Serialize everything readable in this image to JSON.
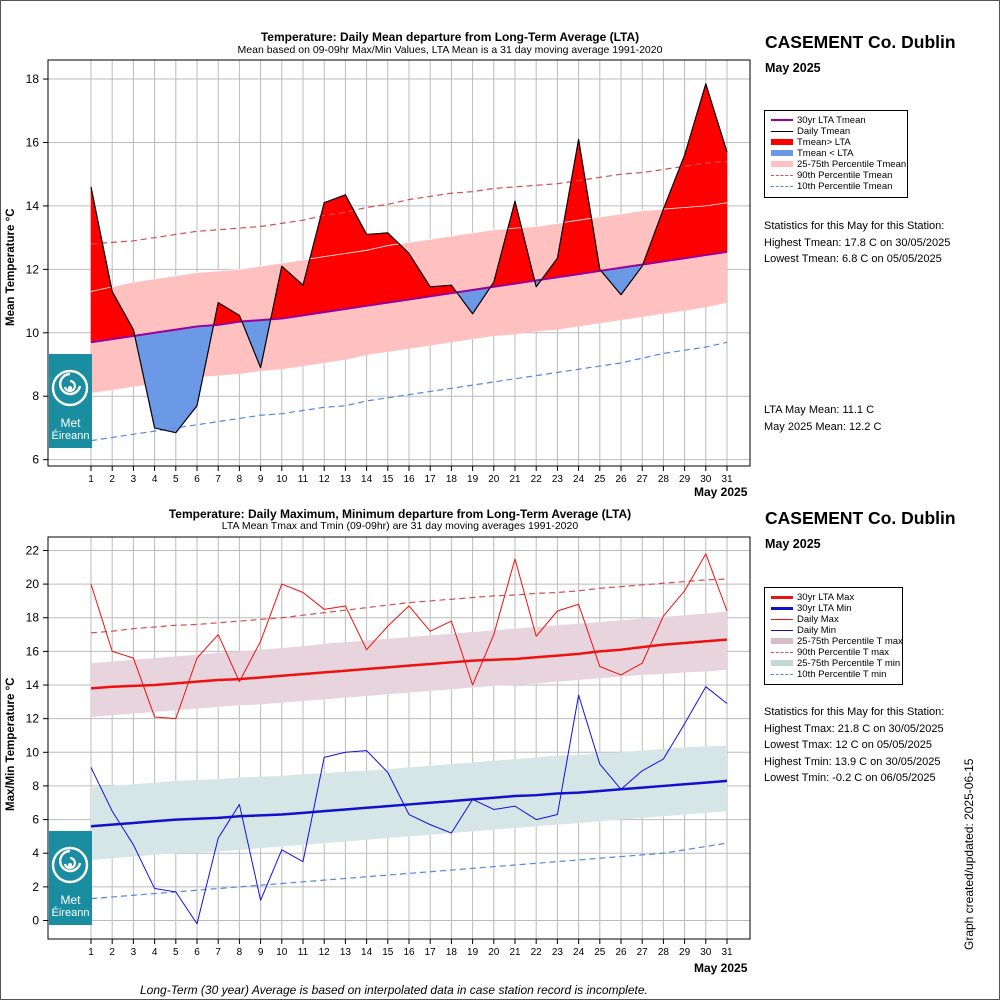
{
  "footnote": "Long-Term (30 year) Average is based on interpolated data in case station record is incomplete.",
  "updated_label": "Graph created/updated:  2025-06-15",
  "logo": {
    "line1": "Met",
    "line2": "Éireann",
    "icon": "met-eireann-swirl-icon"
  },
  "colors": {
    "above": "#ff0000",
    "below": "#6b99e6",
    "lta_mean": "#990099",
    "band_mean": "#ffc0c0",
    "p90": "#d05050",
    "p10": "#5588dd",
    "max": "#ee1111",
    "min": "#1111dd",
    "lta_max": "#ee1111",
    "lta_min": "#1111cc",
    "band_max": "#e8d4dc",
    "band_min": "#d6e6e6"
  },
  "charts": {
    "top": {
      "title": "Temperature: Daily Mean departure from Long-Term Average (LTA)",
      "subtitle": "Mean based on 09-09hr Max/Min Values, LTA Mean is a 31 day moving average 1991-2020",
      "station": "CASEMENT Co. Dublin",
      "month": "May 2025",
      "legend": [
        "30yr LTA Tmean",
        "Daily Tmean",
        "Tmean> LTA",
        "Tmean < LTA",
        "25-75th Percentile Tmean",
        "90th Percentile Tmean",
        "10th Percentile Tmean"
      ],
      "stats_heading": "Statistics for this May for this Station:",
      "stats": [
        "Highest Tmean: 17.8 C on 30/05/2025",
        "Lowest Tmean: 6.8 C on 05/05/2025"
      ],
      "lta_lines": [
        "LTA May Mean: 11.1 C",
        "May 2025 Mean: 12.2 C"
      ]
    },
    "bottom": {
      "title": "Temperature: Daily Maximum, Minimum departure from Long-Term Average (LTA)",
      "subtitle": "LTA Mean Tmax and Tmin (09-09hr) are 31 day moving averages 1991-2020",
      "station": "CASEMENT Co. Dublin",
      "month": "May 2025",
      "legend": [
        "30yr LTA Max",
        "30yr LTA Min",
        "Daily Max",
        "Daily Min",
        "25-75th Percentile T max",
        "90th Percentile T max",
        "25-75th Percentile T min",
        "10th Percentile T min"
      ],
      "stats_heading": "Statistics for this May for this Station:",
      "stats": [
        "Highest Tmax: 21.8 C on 30/05/2025",
        "Lowest Tmax: 12 C on 05/05/2025",
        "Highest Tmin: 13.9 C on 30/05/2025",
        "Lowest Tmin: -0.2 C on 06/05/2025"
      ]
    }
  },
  "chart_data": [
    {
      "type": "line",
      "ylabel": "Mean Temperature °C",
      "xlabel": "May 2025",
      "x": [
        1,
        2,
        3,
        4,
        5,
        6,
        7,
        8,
        9,
        10,
        11,
        12,
        13,
        14,
        15,
        16,
        17,
        18,
        19,
        20,
        21,
        22,
        23,
        24,
        25,
        26,
        27,
        28,
        29,
        30,
        31
      ],
      "ylim": [
        5.8,
        18.6
      ],
      "yticks": [
        6,
        8,
        10,
        12,
        14,
        16,
        18
      ],
      "series": [
        {
          "name": "Daily Tmean",
          "values": [
            14.6,
            11.3,
            10.1,
            7.0,
            6.85,
            7.7,
            10.95,
            10.55,
            8.9,
            12.1,
            11.5,
            14.1,
            14.35,
            13.1,
            13.15,
            12.5,
            11.45,
            11.5,
            10.6,
            11.6,
            14.15,
            11.45,
            12.35,
            16.1,
            12.0,
            11.2,
            12.1,
            13.9,
            15.6,
            17.85,
            15.7
          ]
        },
        {
          "name": "30yr LTA Tmean",
          "values": [
            9.7,
            9.8,
            9.9,
            10.0,
            10.1,
            10.2,
            10.25,
            10.35,
            10.4,
            10.45,
            10.55,
            10.65,
            10.75,
            10.85,
            10.95,
            11.05,
            11.15,
            11.25,
            11.35,
            11.45,
            11.55,
            11.65,
            11.75,
            11.85,
            11.95,
            12.05,
            12.15,
            12.25,
            12.35,
            12.45,
            12.55
          ]
        },
        {
          "name": "90th Percentile Tmean",
          "values": [
            12.8,
            12.85,
            12.9,
            13.0,
            13.1,
            13.2,
            13.25,
            13.3,
            13.35,
            13.45,
            13.55,
            13.7,
            13.8,
            13.95,
            14.05,
            14.2,
            14.3,
            14.4,
            14.45,
            14.55,
            14.6,
            14.65,
            14.7,
            14.8,
            14.9,
            15.0,
            15.05,
            15.15,
            15.25,
            15.35,
            15.4
          ]
        },
        {
          "name": "10th Percentile Tmean",
          "values": [
            6.6,
            6.7,
            6.8,
            6.9,
            7.0,
            7.1,
            7.2,
            7.3,
            7.4,
            7.45,
            7.55,
            7.65,
            7.7,
            7.85,
            7.95,
            8.05,
            8.15,
            8.25,
            8.35,
            8.45,
            8.55,
            8.65,
            8.75,
            8.85,
            8.95,
            9.05,
            9.2,
            9.35,
            9.45,
            9.55,
            9.7
          ]
        },
        {
          "name": "25th Percentile Tmean",
          "values": [
            8.1,
            8.2,
            8.3,
            8.4,
            8.5,
            8.6,
            8.65,
            8.7,
            8.8,
            8.85,
            8.95,
            9.05,
            9.15,
            9.3,
            9.4,
            9.5,
            9.6,
            9.7,
            9.8,
            9.9,
            9.95,
            10.05,
            10.1,
            10.2,
            10.3,
            10.4,
            10.5,
            10.6,
            10.7,
            10.8,
            10.95
          ]
        },
        {
          "name": "75th Percentile Tmean",
          "values": [
            11.3,
            11.45,
            11.6,
            11.7,
            11.8,
            11.9,
            11.95,
            12.0,
            12.1,
            12.2,
            12.3,
            12.4,
            12.5,
            12.6,
            12.75,
            12.85,
            12.95,
            13.05,
            13.15,
            13.25,
            13.3,
            13.35,
            13.45,
            13.55,
            13.65,
            13.75,
            13.85,
            13.9,
            13.95,
            14.0,
            14.1
          ]
        }
      ]
    },
    {
      "type": "line",
      "ylabel": "Max/Min Temperature °C",
      "xlabel": "May 2025",
      "x": [
        1,
        2,
        3,
        4,
        5,
        6,
        7,
        8,
        9,
        10,
        11,
        12,
        13,
        14,
        15,
        16,
        17,
        18,
        19,
        20,
        21,
        22,
        23,
        24,
        25,
        26,
        27,
        28,
        29,
        30,
        31
      ],
      "ylim": [
        -1.1,
        22.8
      ],
      "yticks": [
        0,
        2,
        4,
        6,
        8,
        10,
        12,
        14,
        16,
        18,
        20,
        22
      ],
      "series": [
        {
          "name": "Daily Max",
          "values": [
            20.0,
            16.0,
            15.6,
            12.1,
            12.0,
            15.6,
            17.0,
            14.2,
            16.6,
            20.0,
            19.5,
            18.5,
            18.7,
            16.1,
            17.5,
            18.7,
            17.2,
            17.8,
            14.0,
            17.0,
            21.5,
            16.9,
            18.4,
            18.8,
            15.1,
            14.6,
            15.3,
            18.1,
            19.6,
            21.8,
            18.4
          ]
        },
        {
          "name": "Daily Min",
          "values": [
            9.1,
            6.5,
            4.5,
            1.9,
            1.7,
            -0.2,
            4.9,
            6.9,
            1.2,
            4.2,
            3.5,
            9.7,
            10.0,
            10.1,
            8.8,
            6.3,
            5.7,
            5.2,
            7.2,
            6.6,
            6.8,
            6.0,
            6.3,
            13.4,
            9.3,
            7.8,
            8.9,
            9.6,
            11.7,
            13.9,
            12.9
          ]
        },
        {
          "name": "30yr LTA Max",
          "values": [
            13.8,
            13.9,
            13.95,
            14.0,
            14.1,
            14.2,
            14.3,
            14.35,
            14.45,
            14.55,
            14.65,
            14.75,
            14.85,
            14.95,
            15.05,
            15.15,
            15.25,
            15.35,
            15.45,
            15.5,
            15.55,
            15.65,
            15.75,
            15.85,
            16.0,
            16.1,
            16.25,
            16.4,
            16.5,
            16.6,
            16.7
          ]
        },
        {
          "name": "30yr LTA Min",
          "values": [
            5.6,
            5.7,
            5.8,
            5.9,
            6.0,
            6.05,
            6.1,
            6.2,
            6.25,
            6.3,
            6.4,
            6.5,
            6.6,
            6.7,
            6.8,
            6.9,
            7.0,
            7.1,
            7.2,
            7.3,
            7.4,
            7.45,
            7.55,
            7.6,
            7.7,
            7.8,
            7.9,
            8.0,
            8.1,
            8.2,
            8.3
          ]
        },
        {
          "name": "90th Percentile T max",
          "values": [
            17.1,
            17.2,
            17.35,
            17.45,
            17.55,
            17.6,
            17.7,
            17.8,
            17.9,
            18.0,
            18.15,
            18.3,
            18.45,
            18.6,
            18.75,
            18.9,
            19.0,
            19.1,
            19.2,
            19.3,
            19.35,
            19.45,
            19.5,
            19.6,
            19.75,
            19.85,
            19.95,
            20.05,
            20.15,
            20.25,
            20.3
          ]
        },
        {
          "name": "10th Percentile T min",
          "values": [
            1.3,
            1.4,
            1.5,
            1.6,
            1.7,
            1.8,
            1.9,
            2.0,
            2.1,
            2.2,
            2.3,
            2.4,
            2.5,
            2.6,
            2.7,
            2.8,
            2.9,
            3.0,
            3.1,
            3.2,
            3.3,
            3.4,
            3.5,
            3.6,
            3.7,
            3.8,
            3.9,
            4.0,
            4.2,
            4.4,
            4.6
          ]
        },
        {
          "name": "25th Percentile T max",
          "values": [
            12.1,
            12.2,
            12.3,
            12.4,
            12.5,
            12.6,
            12.7,
            12.8,
            12.85,
            12.95,
            13.05,
            13.15,
            13.25,
            13.35,
            13.45,
            13.55,
            13.65,
            13.75,
            13.85,
            13.95,
            14.0,
            14.1,
            14.2,
            14.3,
            14.4,
            14.5,
            14.6,
            14.65,
            14.75,
            14.8,
            14.9
          ]
        },
        {
          "name": "75th Percentile T max",
          "values": [
            15.3,
            15.4,
            15.5,
            15.6,
            15.7,
            15.8,
            15.9,
            16.0,
            16.1,
            16.2,
            16.3,
            16.45,
            16.55,
            16.65,
            16.75,
            16.85,
            16.95,
            17.05,
            17.15,
            17.25,
            17.35,
            17.45,
            17.55,
            17.65,
            17.75,
            17.85,
            17.95,
            18.05,
            18.15,
            18.25,
            18.35
          ]
        },
        {
          "name": "25th Percentile T min",
          "values": [
            3.6,
            3.7,
            3.8,
            3.9,
            4.0,
            4.05,
            4.1,
            4.2,
            4.3,
            4.4,
            4.5,
            4.6,
            4.7,
            4.8,
            4.9,
            5.0,
            5.1,
            5.2,
            5.3,
            5.4,
            5.5,
            5.6,
            5.7,
            5.8,
            5.9,
            6.0,
            6.1,
            6.2,
            6.3,
            6.4,
            6.5
          ]
        },
        {
          "name": "75th Percentile T min",
          "values": [
            7.9,
            8.0,
            8.1,
            8.2,
            8.3,
            8.35,
            8.4,
            8.5,
            8.55,
            8.6,
            8.7,
            8.75,
            8.85,
            8.9,
            9.0,
            9.1,
            9.2,
            9.3,
            9.4,
            9.5,
            9.6,
            9.7,
            9.8,
            9.85,
            9.95,
            10.0,
            10.1,
            10.2,
            10.3,
            10.35,
            10.4
          ]
        }
      ]
    }
  ]
}
